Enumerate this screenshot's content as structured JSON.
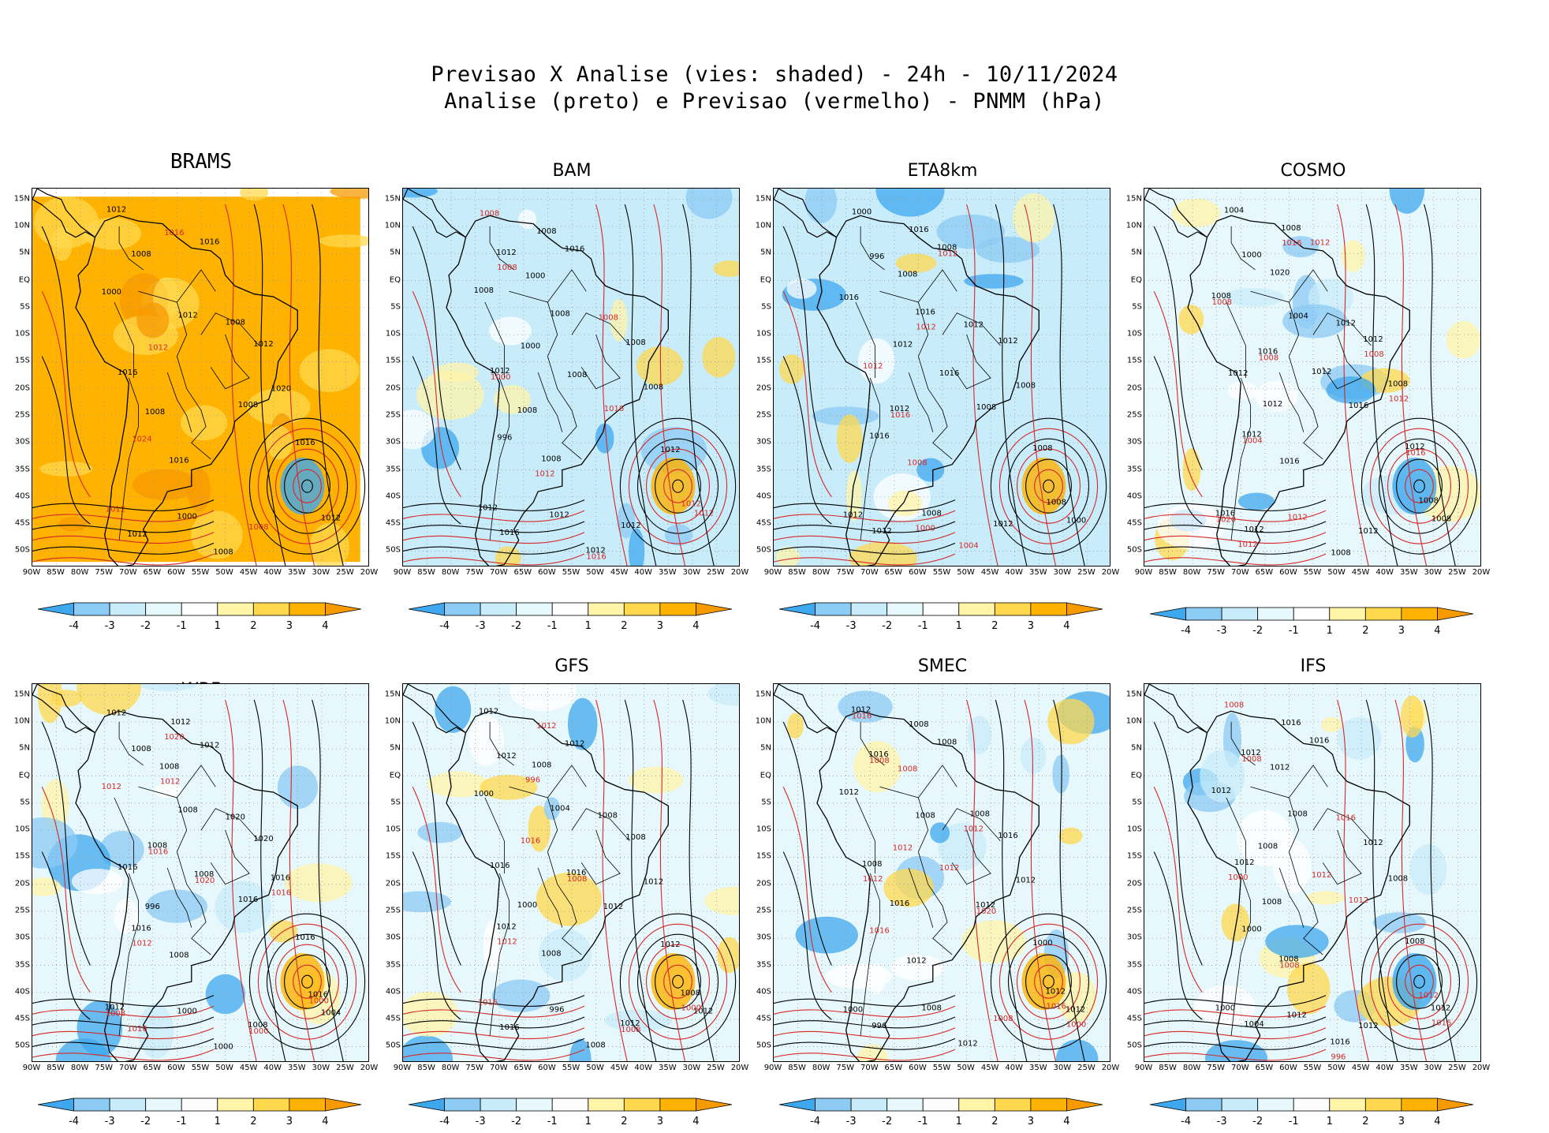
{
  "header": {
    "title_line1": "Previsao X Analise (vies: shaded) - 24h - 10/11/2024",
    "title_line2": "Analise (preto) e Previsao (vermelho) - PNMM (hPa)"
  },
  "axes": {
    "lat_ticks": [
      "15N",
      "10N",
      "5N",
      "EQ",
      "5S",
      "10S",
      "15S",
      "20S",
      "25S",
      "30S",
      "35S",
      "40S",
      "45S",
      "50S"
    ],
    "lon_ticks": [
      "90W",
      "85W",
      "80W",
      "75W",
      "70W",
      "65W",
      "60W",
      "55W",
      "50W",
      "45W",
      "40W",
      "35W",
      "30W",
      "25W",
      "20W"
    ]
  },
  "colorbar": {
    "labels": [
      "-4",
      "-3",
      "-2",
      "-1",
      "1",
      "2",
      "3",
      "4"
    ],
    "colors": [
      "#3ea8ef",
      "#8ccbf4",
      "#c8ecfa",
      "#e6f8fb",
      "#ffffff",
      "#fff4a8",
      "#ffd84e",
      "#ffb300",
      "#f79a00"
    ]
  },
  "contour_colors": {
    "analysis": "#000000",
    "forecast": "#d62828"
  },
  "panels": [
    {
      "name": "BRAMS",
      "bg": "#ffb300",
      "labels_black": [
        "1012",
        "1008",
        "1008",
        "1012",
        "1008",
        "1016",
        "1016",
        "1008",
        "1012",
        "1008",
        "1000",
        "1016",
        "1012",
        "1016",
        "1012",
        "1000",
        "1020"
      ],
      "labels_red": [
        "1012",
        "1016",
        "1012",
        "1024",
        "1008"
      ]
    },
    {
      "name": "BAM",
      "bg": "#c8ecfa",
      "labels_black": [
        "1012",
        "1012",
        "1008",
        "1012",
        "1008",
        "1008",
        "1012",
        "1016",
        "1008",
        "1012",
        "1016",
        "1008",
        "1008",
        "1012",
        "1008",
        "1000",
        "996",
        "1012",
        "1000",
        "1008"
      ],
      "labels_red": [
        "1012",
        "1008",
        "1008",
        "1016",
        "1012",
        "1008",
        "1000",
        "1012",
        "1016"
      ]
    },
    {
      "name": "ETA8km",
      "bg": "#c8ecfa",
      "labels_black": [
        "1016",
        "1012",
        "1008",
        "1008",
        "1012",
        "1008",
        "1012",
        "1016",
        "1008",
        "1012",
        "1016",
        "1012",
        "1016",
        "1012",
        "1008",
        "1016",
        "1008",
        "1000",
        "1012",
        "1008",
        "1000",
        "996"
      ],
      "labels_red": [
        "1012",
        "1008",
        "1004",
        "1012",
        "1016",
        "1000",
        "1012"
      ]
    },
    {
      "name": "COSMO",
      "bg": "#e6f8fb",
      "labels_black": [
        "1012",
        "1012",
        "1012",
        "1008",
        "1008",
        "1016",
        "1008",
        "1016",
        "1012",
        "1012",
        "1020",
        "1012",
        "1008",
        "1004",
        "1012",
        "1016",
        "1008",
        "1000",
        "1012",
        "1016",
        "1008",
        "1004",
        "1012"
      ],
      "labels_red": [
        "1012",
        "1012",
        "1008",
        "1016",
        "1012",
        "1008",
        "1012",
        "1020",
        "1016",
        "1008",
        "1004"
      ]
    },
    {
      "name": "WRF",
      "bg": "#e6f8fb",
      "labels_black": [
        "1016",
        "1012",
        "1012",
        "1008",
        "1016",
        "1008",
        "1008",
        "1008",
        "1016",
        "1012",
        "1020",
        "1016",
        "1004",
        "1008",
        "1016",
        "1008",
        "1000",
        "1008",
        "996",
        "1000",
        "1012",
        "1020",
        "1016"
      ],
      "labels_red": [
        "1016",
        "1012",
        "1016",
        "1008",
        "1020",
        "1016",
        "1012",
        "1000",
        "1012",
        "1020",
        "1000"
      ]
    },
    {
      "name": "GFS",
      "bg": "#e6f8fb",
      "labels_black": [
        "1012",
        "1012",
        "1008",
        "1016",
        "1008",
        "1012",
        "1008",
        "1012",
        "1012",
        "1012",
        "1016",
        "1008",
        "1008",
        "1004",
        "1000",
        "996",
        "1012",
        "1008",
        "1012",
        "1016",
        "1000",
        "1012"
      ],
      "labels_red": [
        "1016",
        "1012",
        "1016",
        "1012",
        "1008",
        "996",
        "1008",
        "1000"
      ]
    },
    {
      "name": "SMEC",
      "bg": "#e6f8fb",
      "labels_black": [
        "1012",
        "1012",
        "1008",
        "1012",
        "1012",
        "1016",
        "1008",
        "1012",
        "1012",
        "1008",
        "1016",
        "1008",
        "1008",
        "1016",
        "1000",
        "996",
        "1012",
        "1012",
        "1000",
        "1008"
      ],
      "labels_red": [
        "1012",
        "1016",
        "1008",
        "1008",
        "1012",
        "1016",
        "1016",
        "1012",
        "1020",
        "1000",
        "1008",
        "1012"
      ]
    },
    {
      "name": "IFS",
      "bg": "#e6f8fb",
      "labels_black": [
        "1012",
        "1012",
        "1012",
        "1008",
        "1016",
        "1008",
        "1008",
        "1012",
        "1016",
        "1012",
        "1008",
        "1004",
        "1012",
        "1008",
        "1000",
        "1016",
        "1008",
        "1000",
        "1012",
        "1012"
      ],
      "labels_red": [
        "1012",
        "1012",
        "1008",
        "1016",
        "1012",
        "1016",
        "1008",
        "1000",
        "1008",
        "996"
      ]
    }
  ]
}
